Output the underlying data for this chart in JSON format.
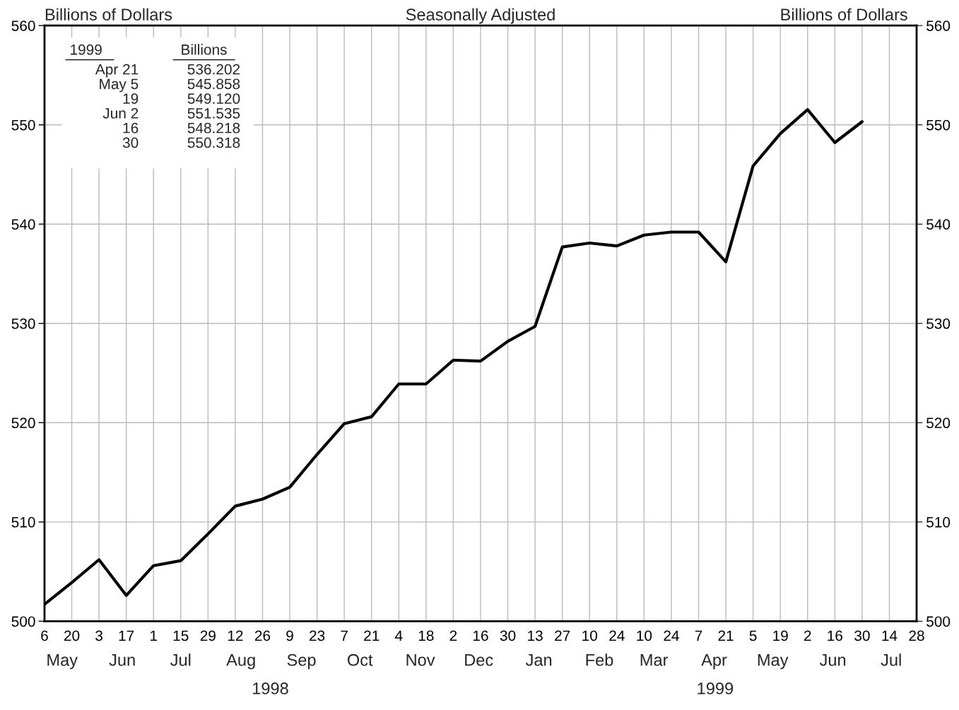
{
  "chart_data": {
    "type": "line",
    "title": "Seasonally Adjusted",
    "ylabel": "Billions of Dollars",
    "y2label": "Billions of Dollars",
    "x": [
      "1998-05-06",
      "1998-05-20",
      "1998-06-03",
      "1998-06-17",
      "1998-07-01",
      "1998-07-15",
      "1998-07-29",
      "1998-08-12",
      "1998-08-26",
      "1998-09-09",
      "1998-09-23",
      "1998-10-07",
      "1998-10-21",
      "1998-11-04",
      "1998-11-18",
      "1998-12-02",
      "1998-12-16",
      "1998-12-30",
      "1999-01-13",
      "1999-01-27",
      "1999-02-10",
      "1999-02-24",
      "1999-03-10",
      "1999-03-24",
      "1999-04-07",
      "1999-04-21",
      "1999-05-05",
      "1999-05-19",
      "1999-06-02",
      "1999-06-16",
      "1999-06-30"
    ],
    "series": [
      {
        "color": "#000000",
        "values": [
          501.7,
          503.9,
          506.2,
          502.6,
          505.6,
          506.1,
          508.8,
          511.6,
          512.3,
          513.5,
          516.8,
          519.9,
          520.6,
          523.9,
          523.9,
          526.3,
          526.2,
          528.2,
          529.7,
          537.7,
          538.1,
          537.8,
          538.9,
          539.2,
          539.2,
          536.202,
          545.858,
          549.12,
          551.535,
          548.218,
          550.318
        ]
      }
    ],
    "xlim": [
      "1998-05-06",
      "1999-07-28"
    ],
    "xticks": [
      {
        "value": "1998-05-06",
        "label": "6"
      },
      {
        "value": "1998-05-20",
        "label": "20"
      },
      {
        "value": "1998-06-03",
        "label": "3"
      },
      {
        "value": "1998-06-17",
        "label": "17"
      },
      {
        "value": "1998-07-01",
        "label": "1"
      },
      {
        "value": "1998-07-15",
        "label": "15"
      },
      {
        "value": "1998-07-29",
        "label": "29"
      },
      {
        "value": "1998-08-12",
        "label": "12"
      },
      {
        "value": "1998-08-26",
        "label": "26"
      },
      {
        "value": "1998-09-09",
        "label": "9"
      },
      {
        "value": "1998-09-23",
        "label": "23"
      },
      {
        "value": "1998-10-07",
        "label": "7"
      },
      {
        "value": "1998-10-21",
        "label": "21"
      },
      {
        "value": "1998-11-04",
        "label": "4"
      },
      {
        "value": "1998-11-18",
        "label": "18"
      },
      {
        "value": "1998-12-02",
        "label": "2"
      },
      {
        "value": "1998-12-16",
        "label": "16"
      },
      {
        "value": "1998-12-30",
        "label": "30"
      },
      {
        "value": "1999-01-13",
        "label": "13"
      },
      {
        "value": "1999-01-27",
        "label": "27"
      },
      {
        "value": "1999-02-10",
        "label": "10"
      },
      {
        "value": "1999-02-24",
        "label": "24"
      },
      {
        "value": "1999-03-10",
        "label": "10"
      },
      {
        "value": "1999-03-24",
        "label": "24"
      },
      {
        "value": "1999-04-07",
        "label": "7"
      },
      {
        "value": "1999-04-21",
        "label": "21"
      },
      {
        "value": "1999-05-05",
        "label": "5"
      },
      {
        "value": "1999-05-19",
        "label": "19"
      },
      {
        "value": "1999-06-02",
        "label": "2"
      },
      {
        "value": "1999-06-16",
        "label": "16"
      },
      {
        "value": "1999-06-30",
        "label": "30"
      },
      {
        "value": "1999-07-14",
        "label": "14"
      },
      {
        "value": "1999-07-28",
        "label": "28"
      }
    ],
    "ylim": [
      500,
      560
    ],
    "yticks": [
      500,
      510,
      520,
      530,
      540,
      550,
      560
    ],
    "y2lim": [
      500,
      560
    ],
    "y2ticks": [
      500,
      510,
      520,
      530,
      540,
      550,
      560
    ],
    "grid": true,
    "legend": false,
    "marker": "none",
    "line_style": "solid",
    "annotations": [
      "1999",
      "Billions",
      "Apr 21",
      "536.202",
      "May 5",
      "545.858",
      "19",
      "549.120",
      "Jun 2",
      "551.535",
      "16",
      "548.218",
      "30",
      "550.318",
      "May",
      "Jun",
      "Jul",
      "Aug",
      "Sep",
      "Oct",
      "Nov",
      "Dec",
      "Jan",
      "Feb",
      "Mar",
      "Apr",
      "May",
      "Jun",
      "Jul",
      "1998",
      "1999"
    ]
  }
}
